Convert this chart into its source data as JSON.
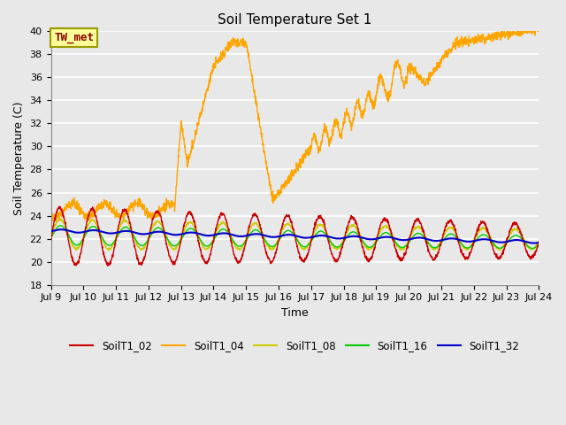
{
  "title": "Soil Temperature Set 1",
  "xlabel": "Time",
  "ylabel": "Soil Temperature (C)",
  "ylim": [
    18,
    40
  ],
  "yticks": [
    18,
    20,
    22,
    24,
    26,
    28,
    30,
    32,
    34,
    36,
    38,
    40
  ],
  "xtick_labels": [
    "Jul 9",
    "Jul 10",
    "Jul 11",
    "Jul 12",
    "Jul 13",
    "Jul 14",
    "Jul 15",
    "Jul 16",
    "Jul 17",
    "Jul 18",
    "Jul 19",
    "Jul 20",
    "Jul 21",
    "Jul 22",
    "Jul 23",
    "Jul 24"
  ],
  "annotation_text": "TW_met",
  "annotation_color": "#8B0000",
  "annotation_bg": "#FFFF99",
  "annotation_border": "#999900",
  "colors": {
    "SoilT1_02": "#CC0000",
    "SoilT1_04": "#FFA500",
    "SoilT1_08": "#CCCC00",
    "SoilT1_16": "#00CC00",
    "SoilT1_32": "#0000CC"
  },
  "axes_bg": "#E8E8E8",
  "grid_color": "#FFFFFF",
  "fig_bg": "#E8E8E8"
}
